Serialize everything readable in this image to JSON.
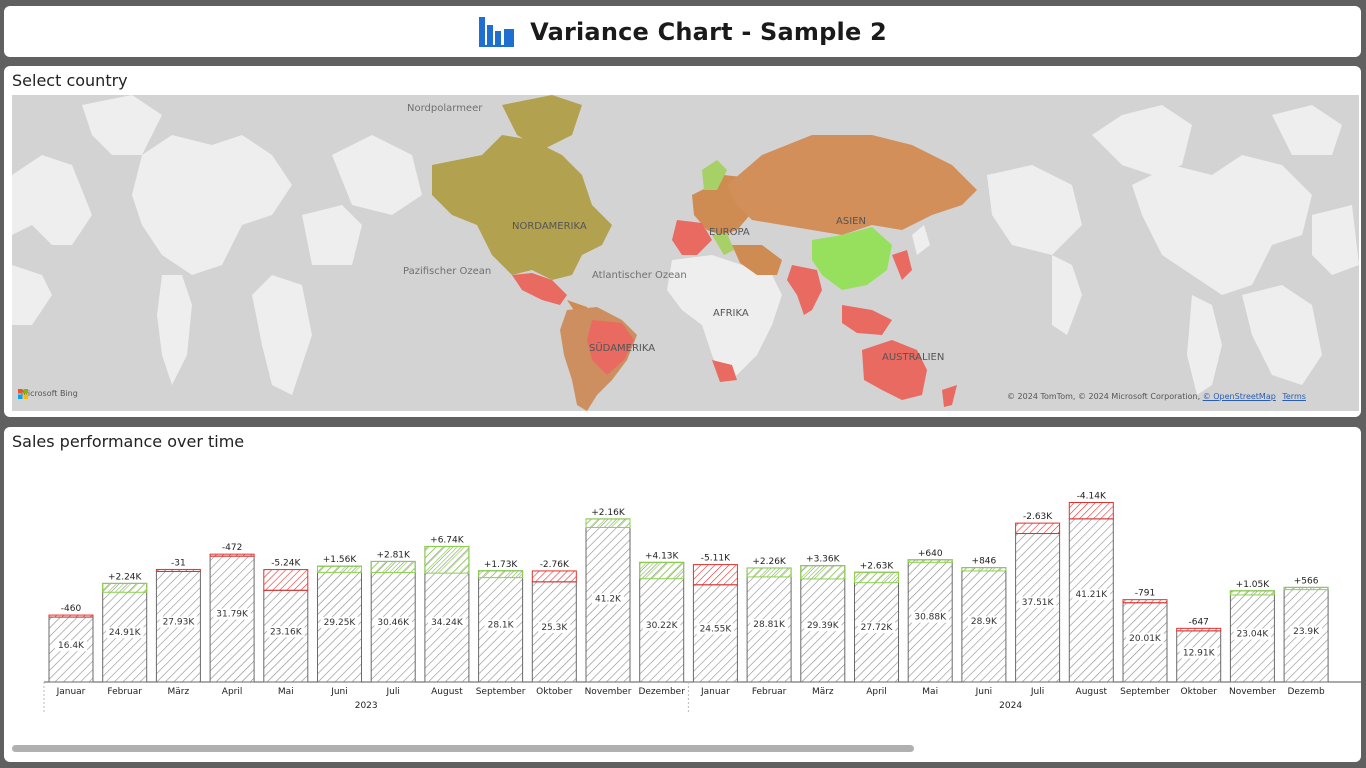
{
  "header": {
    "title": "Variance Chart - Sample 2",
    "logo_icon": "bar-chart-logo-icon",
    "logo_color": "#1f6fd1"
  },
  "map_panel": {
    "heading": "Select country",
    "labels": {
      "arctic": "Nordpolarmeer",
      "north_america": "NORDAMERIKA",
      "europe": "EUROPA",
      "asia": "ASIEN",
      "pacific": "Pazifischer Ozean",
      "atlantic": "Atlantischer Ozean",
      "africa": "AFRIKA",
      "south_america": "SÜDAMERIKA",
      "australia": "AUSTRALIEN"
    },
    "bing_logo": "Microsoft Bing",
    "credit_text": "© 2024 TomTom, © 2024 Microsoft Corporation,",
    "credit_osm": "© OpenStreetMap",
    "credit_terms": "Terms",
    "colors": {
      "water": "#d3d3d3",
      "land": "#eeeeee",
      "north_america": "#b2a14e",
      "europe_orange": "#cf8c52",
      "asia": "#d28f5a",
      "china": "#96e05e",
      "red": "#e86a60",
      "south_america_orange": "#cd8f5f",
      "europe_green": "#a7d067"
    }
  },
  "chart_panel": {
    "heading": "Sales performance over time",
    "colors": {
      "positive": "#8cd24d",
      "negative": "#e0312e",
      "bar_stroke": "#6a6a6a",
      "hatch": "#8a8a8a"
    }
  },
  "chart_data": {
    "type": "bar",
    "title": "Sales performance over time",
    "years": [
      "2023",
      "2024"
    ],
    "categories": [
      "Januar",
      "Februar",
      "März",
      "April",
      "Mai",
      "Juni",
      "Juli",
      "August",
      "September",
      "Oktober",
      "November",
      "Dezember",
      "Januar",
      "Februar",
      "März",
      "April",
      "Mai",
      "Juni",
      "Juli",
      "August",
      "September",
      "Oktober",
      "November",
      "Dezember"
    ],
    "category_labels": [
      "Januar",
      "Februar",
      "März",
      "April",
      "Mai",
      "Juni",
      "Juli",
      "August",
      "September",
      "Oktober",
      "November",
      "Dezember",
      "Januar",
      "Februar",
      "März",
      "April",
      "Mai",
      "Juni",
      "Juli",
      "August",
      "September",
      "Oktober",
      "November",
      "Dezemb"
    ],
    "values": [
      16400,
      24910,
      27930,
      31790,
      23160,
      29250,
      30460,
      34240,
      28100,
      25300,
      41200,
      30220,
      24550,
      28810,
      29390,
      27720,
      30880,
      28900,
      37510,
      41210,
      20010,
      12910,
      23040,
      23900
    ],
    "value_labels": [
      "16.4K",
      "24.91K",
      "27.93K",
      "31.79K",
      "23.16K",
      "29.25K",
      "30.46K",
      "34.24K",
      "28.1K",
      "25.3K",
      "41.2K",
      "30.22K",
      "24.55K",
      "28.81K",
      "29.39K",
      "27.72K",
      "30.88K",
      "28.9K",
      "37.51K",
      "41.21K",
      "20.01K",
      "12.91K",
      "23.04K",
      "23.9K"
    ],
    "variances": [
      -460,
      2240,
      -31,
      -472,
      -5240,
      1560,
      2810,
      6740,
      1730,
      -2760,
      2160,
      4130,
      -5110,
      2260,
      3360,
      2630,
      640,
      846,
      -2630,
      -4140,
      -791,
      -647,
      1050,
      566
    ],
    "variance_labels": [
      "-460",
      "+2.24K",
      "-31",
      "-472",
      "-5.24K",
      "+1.56K",
      "+2.81K",
      "+6.74K",
      "+1.73K",
      "-2.76K",
      "+2.16K",
      "+4.13K",
      "-5.11K",
      "+2.26K",
      "+3.36K",
      "+2.63K",
      "+640",
      "+846",
      "-2.63K",
      "-4.14K",
      "-791",
      "-647",
      "+1.05K",
      "+566"
    ],
    "ylim": [
      0,
      48000
    ],
    "grid": false,
    "legend": "none"
  }
}
